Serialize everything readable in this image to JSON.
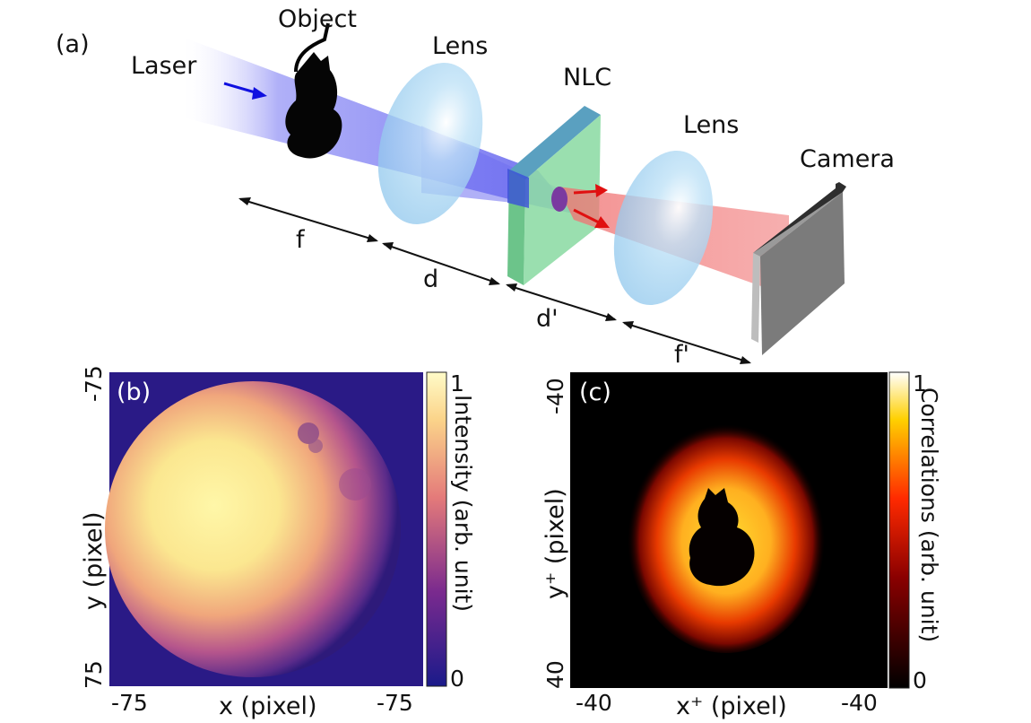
{
  "panel_a": {
    "label": "(a)",
    "laser": "Laser",
    "object": "Object",
    "lens1": "Lens",
    "nlc": "NLC",
    "lens2": "Lens",
    "camera": "Camera",
    "dist_f": "f",
    "dist_d": "d",
    "dist_dprime": "d'",
    "dist_fprime": "f'"
  },
  "panel_b": {
    "label": "(b)",
    "xlabel": "x (pixel)",
    "ylabel": "y (pixel)",
    "x_ticks": [
      "-75",
      "-75"
    ],
    "y_ticks": [
      "-75",
      "75"
    ],
    "colorbar_label": "Intensity (arb. unit)",
    "colorbar_ticks": [
      "1",
      "0"
    ]
  },
  "panel_c": {
    "label": "(c)",
    "xlabel": "x⁺ (pixel)",
    "ylabel": "y⁺ (pixel)",
    "x_ticks": [
      "-40",
      "-40"
    ],
    "y_ticks": [
      "-40",
      "40"
    ],
    "colorbar_label": "Correlations (arb. unit)",
    "colorbar_ticks": [
      "1",
      "0"
    ]
  },
  "colors": {
    "beam_blue": "#6e6ef0",
    "beam_red": "#f06a6a",
    "lens": "#9fd0f0",
    "nlc_front": "#7fd49a",
    "nlc_edge": "#4a8fb0",
    "camera": "#7b7b7b",
    "arrow_blue": "#1010e0",
    "arrow_red": "#e01010"
  }
}
